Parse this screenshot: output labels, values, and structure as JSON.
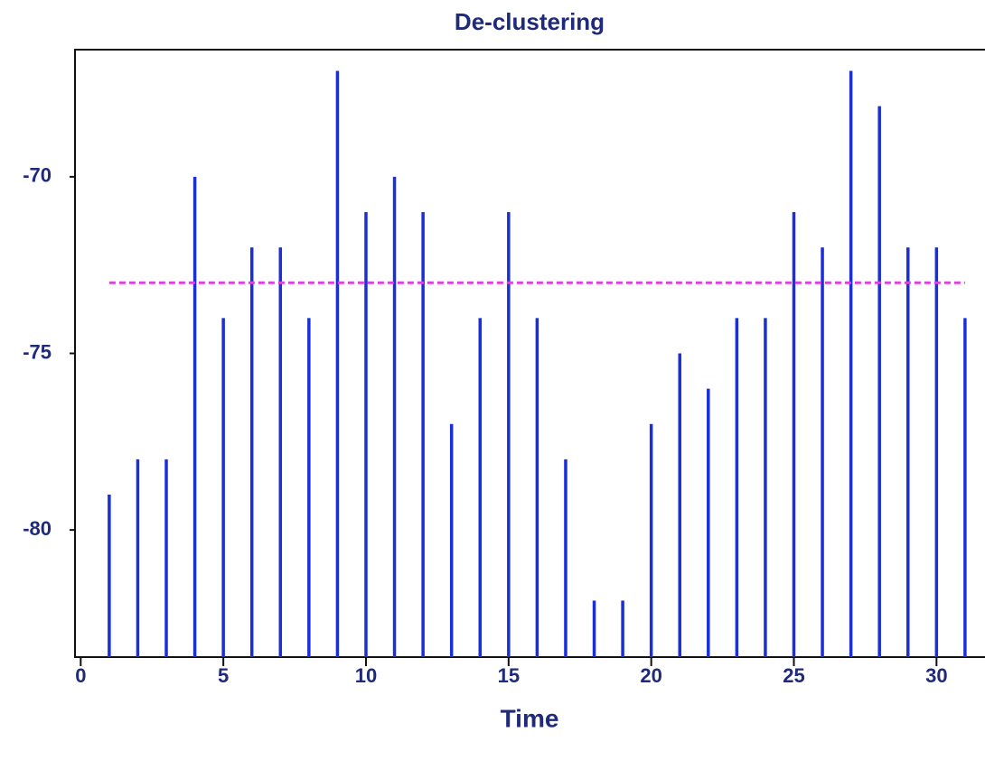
{
  "chart_data": {
    "type": "stem",
    "title": "De-clustering",
    "x_label": "Time",
    "x": [
      1,
      2,
      3,
      4,
      5,
      6,
      7,
      8,
      9,
      10,
      11,
      12,
      13,
      14,
      15,
      16,
      17,
      18,
      19,
      20,
      21,
      22,
      23,
      24,
      25,
      26,
      27,
      28,
      29,
      30,
      31
    ],
    "values": [
      -79,
      -78,
      -78,
      -70,
      -74,
      -72,
      -72,
      -74,
      -67,
      -71,
      -70,
      -71,
      -77,
      -74,
      -71,
      -74,
      -78,
      -82,
      -82,
      -77,
      -75,
      -76,
      -74,
      -74,
      -71,
      -72,
      -67,
      -68,
      -72,
      -72,
      -74
    ],
    "color": "#1b2fd8",
    "reference_line": {
      "value": -73,
      "color": "#e040e0",
      "dashed": true
    },
    "xlim": [
      -0.2,
      31.7
    ],
    "ylim": [
      -83.6,
      -66.4
    ],
    "xticks": [
      0,
      5,
      10,
      15,
      20,
      25,
      30
    ],
    "yticks": [
      -80,
      -75,
      -70
    ]
  }
}
